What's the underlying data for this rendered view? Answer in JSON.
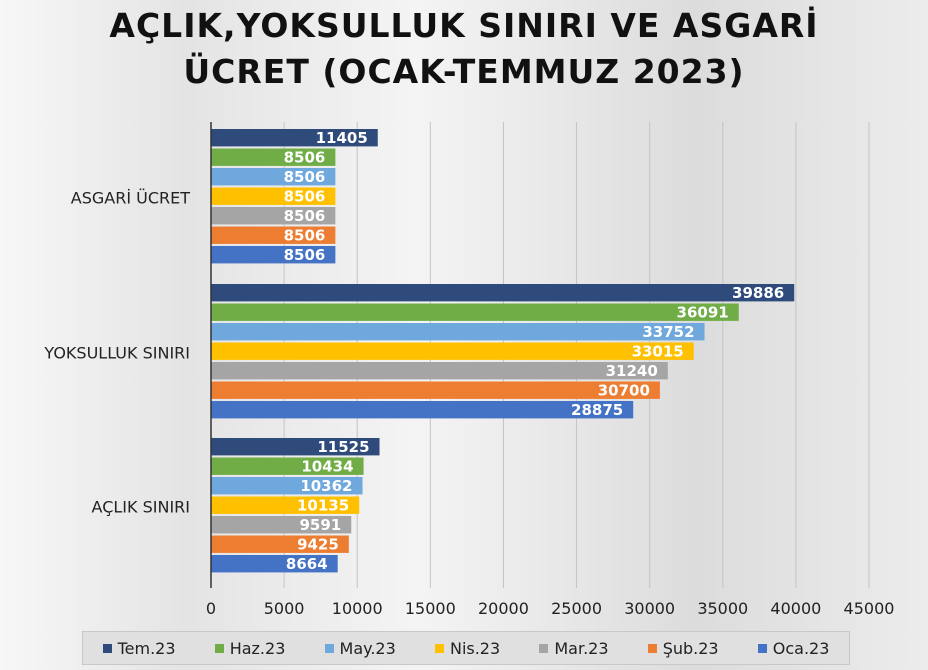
{
  "chart_data": {
    "type": "bar",
    "orientation": "horizontal",
    "title_lines": [
      "AÇLIK,YOKSULLUK SINIRI VE ASGARİ",
      "ÜCRET (OCAK-TEMMUZ 2023)"
    ],
    "categories": [
      "ASGARİ ÜCRET",
      "YOKSULLUK SINIRI",
      "AÇLIK SINIRI"
    ],
    "series": [
      {
        "name": "Tem.23",
        "color": "#2f4b7c",
        "values": [
          11405,
          39886,
          11525
        ]
      },
      {
        "name": "Haz.23",
        "color": "#70ad47",
        "values": [
          8506,
          36091,
          10434
        ]
      },
      {
        "name": "May.23",
        "color": "#6fa8dc",
        "values": [
          8506,
          33752,
          10362
        ]
      },
      {
        "name": "Nis.23",
        "color": "#ffc000",
        "values": [
          8506,
          33015,
          10135
        ]
      },
      {
        "name": "Mar.23",
        "color": "#a5a5a5",
        "values": [
          8506,
          31240,
          9591
        ]
      },
      {
        "name": "Şub.23",
        "color": "#ed7d31",
        "values": [
          8506,
          30700,
          9425
        ]
      },
      {
        "name": "Oca.23",
        "color": "#4472c4",
        "values": [
          8506,
          28875,
          8664
        ]
      }
    ],
    "xlim": [
      0,
      45000
    ],
    "xticks": [
      0,
      5000,
      10000,
      15000,
      20000,
      25000,
      30000,
      35000,
      40000,
      45000
    ],
    "grid": true,
    "legend_position": "bottom",
    "data_labels": true
  }
}
